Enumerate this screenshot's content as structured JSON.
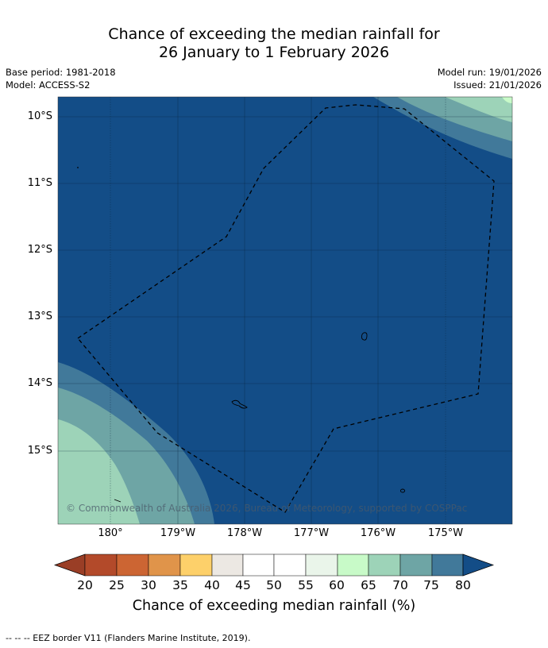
{
  "title_line1": "Chance of exceeding the median rainfall for",
  "title_line2": "26 January to 1 February 2026",
  "base_period": "Base period: 1981-2018",
  "model": "Model: ACCESS-S2",
  "model_run": "Model run: 19/01/2026",
  "issued": "Issued: 21/01/2026",
  "lat_labels": [
    "10°S",
    "11°S",
    "12°S",
    "13°S",
    "14°S",
    "15°S"
  ],
  "lon_labels": [
    "180°",
    "179°W",
    "178°W",
    "177°W",
    "176°W",
    "175°W"
  ],
  "copyright": "© Commonwealth of Australia 2026, Bureau of Meteorology, supported by COSPPac",
  "colorbar": {
    "ticks": [
      "20",
      "25",
      "30",
      "35",
      "40",
      "45",
      "50",
      "55",
      "60",
      "65",
      "70",
      "75",
      "80"
    ],
    "colors": [
      "#b34a2a",
      "#cc6533",
      "#e0944a",
      "#fdd06a",
      "#ece8e3",
      "#ffffff",
      "#ffffff",
      "#eaf5ea",
      "#c8fac8",
      "#9dd3b8",
      "#6ea5a5",
      "#41799a"
    ],
    "under_color": "#9a3e26",
    "over_color": "#134d87",
    "label": "Chance of exceeding median rainfall (%)"
  },
  "map_colors": {
    "band_80plus": "#134d87",
    "band_75_80": "#41799a",
    "band_70_75": "#6ea5a5",
    "band_65_70": "#9dd3b8",
    "band_60_65": "#c8fac8"
  },
  "legend_footer": "--  --  -- EEZ border V11 (Flanders Marine Institute, 2019)."
}
